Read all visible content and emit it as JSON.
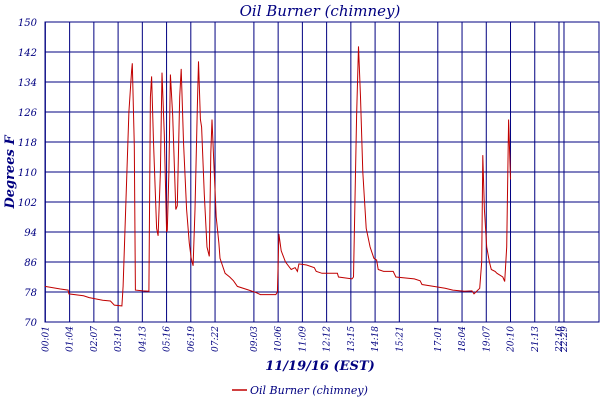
{
  "chart_data": {
    "type": "line",
    "title": "Oil Burner (chimney)",
    "xlabel": "11/19/16 (EST)",
    "ylabel": "Degrees F",
    "ylim": [
      70,
      150
    ],
    "yticks": [
      70,
      78,
      86,
      94,
      102,
      110,
      118,
      126,
      134,
      142,
      150
    ],
    "xlim": [
      0,
      1440
    ],
    "xticks": [
      {
        "label": "00:01",
        "minutes": 1
      },
      {
        "label": "01:04",
        "minutes": 64
      },
      {
        "label": "02:07",
        "minutes": 127
      },
      {
        "label": "03:10",
        "minutes": 190
      },
      {
        "label": "04:13",
        "minutes": 253
      },
      {
        "label": "05:16",
        "minutes": 316
      },
      {
        "label": "06:19",
        "minutes": 379
      },
      {
        "label": "07:22",
        "minutes": 442
      },
      {
        "label": "09:03",
        "minutes": 543
      },
      {
        "label": "10:06",
        "minutes": 606
      },
      {
        "label": "11:09",
        "minutes": 669
      },
      {
        "label": "12:12",
        "minutes": 732
      },
      {
        "label": "13:15",
        "minutes": 795
      },
      {
        "label": "14:18",
        "minutes": 858
      },
      {
        "label": "15:21",
        "minutes": 921
      },
      {
        "label": "17:01",
        "minutes": 1021
      },
      {
        "label": "18:04",
        "minutes": 1084
      },
      {
        "label": "19:07",
        "minutes": 1147
      },
      {
        "label": "20:10",
        "minutes": 1210
      },
      {
        "label": "21:13",
        "minutes": 1273
      },
      {
        "label": "22:16",
        "minutes": 1336
      },
      {
        "label": "22:29",
        "minutes": 1349
      }
    ],
    "grid": true,
    "legend": "bottom-left",
    "series": [
      {
        "name": "Oil Burner (chimney)",
        "color": "#c00000",
        "points": [
          [
            0,
            79.5
          ],
          [
            40,
            78.8
          ],
          [
            60,
            78.5
          ],
          [
            62,
            77.5
          ],
          [
            100,
            77.0
          ],
          [
            115,
            76.5
          ],
          [
            150,
            75.8
          ],
          [
            170,
            75.6
          ],
          [
            180,
            74.5
          ],
          [
            200,
            74.3
          ],
          [
            203,
            79.5
          ],
          [
            218,
            126
          ],
          [
            225,
            137
          ],
          [
            227,
            139
          ],
          [
            232,
            117
          ],
          [
            235,
            78.5
          ],
          [
            255,
            78.3
          ],
          [
            270,
            78.2
          ],
          [
            274,
            130
          ],
          [
            277,
            135.5
          ],
          [
            282,
            118
          ],
          [
            290,
            95
          ],
          [
            294,
            93
          ],
          [
            300,
            110
          ],
          [
            304,
            136.5
          ],
          [
            310,
            120
          ],
          [
            316,
            94
          ],
          [
            318,
            94.5
          ],
          [
            322,
            110
          ],
          [
            326,
            136
          ],
          [
            332,
            125
          ],
          [
            340,
            100
          ],
          [
            344,
            101
          ],
          [
            350,
            130
          ],
          [
            354,
            137.5
          ],
          [
            360,
            118
          ],
          [
            368,
            100
          ],
          [
            375,
            91
          ],
          [
            380,
            87
          ],
          [
            385,
            85
          ],
          [
            390,
            100
          ],
          [
            396,
            128
          ],
          [
            399,
            139.5
          ],
          [
            404,
            124
          ],
          [
            407,
            122
          ],
          [
            414,
            104
          ],
          [
            421,
            90
          ],
          [
            427,
            87.5
          ],
          [
            431,
            115
          ],
          [
            434,
            124
          ],
          [
            439,
            112
          ],
          [
            445,
            98
          ],
          [
            452,
            91
          ],
          [
            455,
            87
          ],
          [
            468,
            83
          ],
          [
            480,
            82
          ],
          [
            490,
            81
          ],
          [
            500,
            79.5
          ],
          [
            530,
            78.5
          ],
          [
            550,
            77.8
          ],
          [
            560,
            77.3
          ],
          [
            600,
            77.3
          ],
          [
            604,
            78
          ],
          [
            608,
            93.5
          ],
          [
            614,
            89
          ],
          [
            625,
            86
          ],
          [
            640,
            84
          ],
          [
            650,
            84.5
          ],
          [
            656,
            83.5
          ],
          [
            660,
            85.5
          ],
          [
            680,
            85.2
          ],
          [
            700,
            84.5
          ],
          [
            705,
            83.5
          ],
          [
            720,
            83.0
          ],
          [
            760,
            83.0
          ],
          [
            763,
            82
          ],
          [
            798,
            81.5
          ],
          [
            802,
            82
          ],
          [
            810,
            125
          ],
          [
            815,
            143.5
          ],
          [
            820,
            130
          ],
          [
            826,
            110
          ],
          [
            835,
            95
          ],
          [
            845,
            90
          ],
          [
            855,
            87
          ],
          [
            862,
            86.5
          ],
          [
            866,
            84
          ],
          [
            880,
            83.5
          ],
          [
            905,
            83.5
          ],
          [
            912,
            82
          ],
          [
            960,
            81.5
          ],
          [
            975,
            81
          ],
          [
            980,
            80
          ],
          [
            1010,
            79.5
          ],
          [
            1040,
            79.0
          ],
          [
            1060,
            78.5
          ],
          [
            1090,
            78.2
          ],
          [
            1110,
            78.3
          ],
          [
            1115,
            77.5
          ],
          [
            1120,
            78.0
          ],
          [
            1130,
            79
          ],
          [
            1135,
            86
          ],
          [
            1138,
            114.5
          ],
          [
            1142,
            100
          ],
          [
            1148,
            90
          ],
          [
            1155,
            86
          ],
          [
            1160,
            84
          ],
          [
            1170,
            83.5
          ],
          [
            1175,
            83
          ],
          [
            1190,
            82
          ],
          [
            1195,
            80.8
          ],
          [
            1200,
            90
          ],
          [
            1205,
            124
          ],
          [
            1210,
            108
          ]
        ]
      }
    ]
  }
}
